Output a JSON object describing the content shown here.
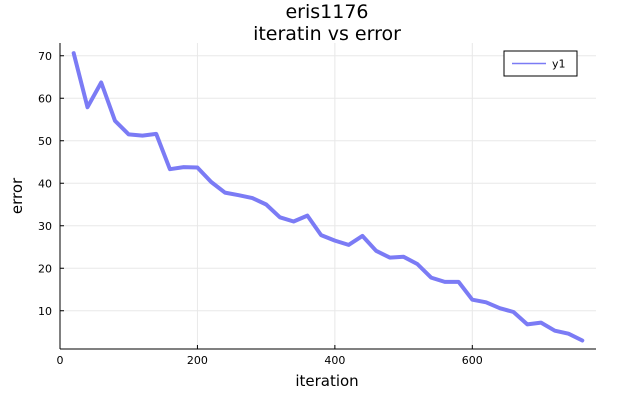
{
  "chart_data": {
    "type": "line",
    "title": "eris1176",
    "subtitle": "iteratin vs error",
    "xlabel": "iteration",
    "ylabel": "error",
    "xlim": [
      0,
      780
    ],
    "ylim": [
      1,
      73
    ],
    "xticks": [
      0,
      200,
      400,
      600
    ],
    "yticks": [
      10,
      20,
      30,
      40,
      50,
      60,
      70
    ],
    "grid": true,
    "legend_position": "top-right",
    "series": [
      {
        "name": "y1",
        "color": "#7b7bf5",
        "x": [
          20,
          40,
          60,
          80,
          100,
          120,
          140,
          160,
          180,
          200,
          220,
          240,
          260,
          280,
          300,
          320,
          340,
          360,
          380,
          400,
          420,
          440,
          460,
          480,
          500,
          520,
          540,
          560,
          580,
          600,
          620,
          640,
          660,
          680,
          700,
          720,
          740,
          760
        ],
        "y": [
          70.6,
          57.9,
          63.7,
          54.7,
          51.5,
          51.2,
          51.6,
          43.3,
          43.8,
          43.7,
          40.3,
          37.8,
          37.2,
          36.5,
          35.0,
          32.0,
          31.0,
          32.4,
          27.8,
          26.5,
          25.5,
          27.6,
          24.1,
          22.5,
          22.7,
          21.0,
          17.8,
          16.8,
          16.8,
          12.6,
          12.0,
          10.6,
          9.7,
          6.8,
          7.2,
          5.3,
          4.6,
          3.0
        ]
      }
    ]
  }
}
